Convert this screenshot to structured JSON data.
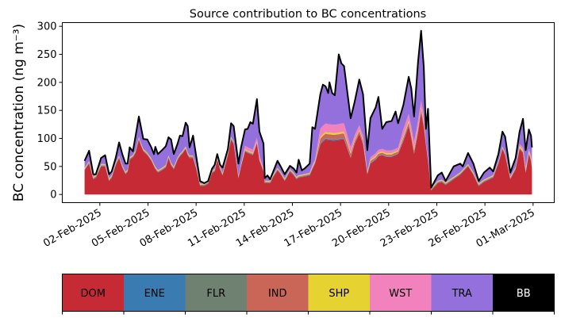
{
  "chart_data": {
    "type": "area",
    "stacked": true,
    "title": "Source contribution to BC concentrations",
    "xlabel": "",
    "ylabel": "BC concentration (ng m⁻³)",
    "x_unit": "day of February 2025",
    "xlim": [
      -0.34,
      30.32
    ],
    "ylim": [
      -14.6,
      306.6
    ],
    "yticks": [
      0,
      50,
      100,
      150,
      200,
      250,
      300
    ],
    "xticks": [
      2,
      5,
      8,
      11,
      14,
      17,
      20,
      23,
      26,
      29
    ],
    "xtick_labels": [
      "02-Feb-2025",
      "05-Feb-2025",
      "08-Feb-2025",
      "11-Feb-2025",
      "14-Feb-2025",
      "17-Feb-2025",
      "20-Feb-2025",
      "23-Feb-2025",
      "26-Feb-2025",
      "01-Mar-2025"
    ],
    "grid": false,
    "legend_placement": "bottom colorbar",
    "x": [
      1.05,
      1.33,
      1.59,
      1.75,
      2.08,
      2.33,
      2.58,
      2.74,
      2.99,
      3.2,
      3.4,
      3.6,
      3.73,
      3.86,
      4.06,
      4.22,
      4.43,
      4.55,
      4.71,
      4.96,
      5.21,
      5.37,
      5.46,
      5.62,
      5.87,
      6.11,
      6.28,
      6.44,
      6.61,
      6.85,
      6.99,
      7.15,
      7.35,
      7.48,
      7.59,
      7.81,
      8.01,
      8.25,
      8.5,
      8.75,
      8.99,
      9.16,
      9.32,
      9.49,
      9.65,
      9.98,
      10.18,
      10.34,
      10.64,
      10.8,
      11.05,
      11.21,
      11.38,
      11.54,
      11.79,
      11.95,
      12.2,
      12.28,
      12.45,
      12.61,
      12.78,
      13.07,
      13.27,
      13.52,
      13.85,
      14.09,
      14.26,
      14.39,
      14.59,
      14.75,
      15.08,
      15.24,
      15.41,
      15.74,
      15.9,
      16.07,
      16.23,
      16.31,
      16.48,
      16.64,
      16.89,
      17.05,
      17.22,
      17.63,
      17.88,
      18.17,
      18.4,
      18.67,
      18.86,
      19.19,
      19.36,
      19.6,
      19.85,
      20.18,
      20.43,
      20.59,
      20.92,
      21.25,
      21.41,
      21.58,
      21.83,
      22.02,
      22.19,
      22.32,
      22.45,
      22.65,
      23.06,
      23.31,
      23.55,
      24.05,
      24.46,
      24.62,
      24.95,
      25.28,
      25.61,
      25.94,
      26.3,
      26.51,
      26.84,
      27.09,
      27.26,
      27.58,
      27.91,
      28.16,
      28.37,
      28.54,
      28.74,
      28.87,
      28.93
    ],
    "series": [
      {
        "name": "DOM",
        "color": "#c52a35",
        "values": [
          43,
          55,
          27,
          30,
          50,
          50,
          24,
          30,
          52,
          65,
          48,
          36,
          40,
          62,
          66,
          74,
          98,
          88,
          77,
          70,
          60,
          50,
          45,
          39,
          43,
          48,
          65,
          52,
          45,
          62,
          68,
          73,
          81,
          70,
          65,
          65,
          45,
          15,
          15,
          19,
          38,
          41,
          62,
          45,
          34,
          70,
          98,
          90,
          29,
          50,
          77,
          74,
          72,
          70,
          91,
          60,
          41,
          20,
          20,
          20,
          30,
          43,
          36,
          24,
          41,
          34,
          27,
          30,
          31,
          32,
          34,
          45,
          55,
          89,
          94,
          98,
          97,
          97,
          96,
          96,
          97,
          98,
          98,
          65,
          90,
          108,
          90,
          36,
          55,
          62,
          68,
          70,
          67,
          67,
          70,
          72,
          95,
          122,
          100,
          72,
          110,
          146,
          120,
          89,
          60,
          7,
          20,
          22,
          17,
          27,
          35,
          40,
          50,
          35,
          15,
          22,
          27,
          30,
          55,
          81,
          70,
          27,
          45,
          81,
          74,
          39,
          72,
          60,
          46
        ]
      },
      {
        "name": "ENE",
        "color": "#3a7bb2",
        "values": [
          1,
          1,
          1,
          1,
          1,
          1,
          1,
          1,
          1,
          1,
          1,
          1,
          1,
          1,
          1,
          1,
          1,
          1,
          1,
          1,
          1,
          1,
          1,
          1,
          1,
          1,
          1,
          1,
          1,
          1,
          1,
          1,
          1,
          1,
          1,
          1,
          1,
          1,
          1,
          1,
          1,
          1,
          1,
          1,
          1,
          1,
          1,
          1,
          1,
          1,
          1,
          1,
          1,
          1,
          1,
          1,
          1,
          1,
          1,
          1,
          1,
          1,
          1,
          1,
          1,
          1,
          1,
          1,
          1,
          1,
          1,
          1,
          1,
          2,
          2,
          2,
          2,
          2,
          2,
          2,
          2,
          2,
          2,
          1,
          1,
          1,
          1,
          1,
          1,
          1,
          1,
          1,
          1,
          1,
          1,
          1,
          2,
          2,
          2,
          2,
          2,
          2,
          2,
          1,
          1,
          1,
          1,
          1,
          1,
          1,
          1,
          1,
          1,
          1,
          1,
          1,
          1,
          1,
          1,
          1,
          1,
          1,
          1,
          1,
          1,
          1,
          1,
          1,
          1
        ]
      },
      {
        "name": "FLR",
        "color": "#6f8272",
        "values": [
          0.5,
          0.5,
          0.5,
          0.5,
          0.5,
          0.5,
          0.5,
          0.5,
          0.5,
          0.5,
          0.5,
          0.5,
          0.5,
          0.5,
          0.5,
          0.5,
          0.5,
          0.5,
          0.5,
          0.5,
          0.5,
          0.5,
          0.5,
          0.5,
          0.5,
          0.5,
          0.5,
          0.5,
          0.5,
          0.5,
          0.5,
          0.5,
          0.5,
          0.5,
          0.5,
          0.5,
          0.5,
          0.5,
          0.5,
          0.5,
          0.5,
          0.5,
          0.5,
          0.5,
          0.5,
          0.5,
          0.5,
          0.5,
          0.5,
          0.5,
          0.5,
          0.5,
          0.5,
          0.5,
          0.5,
          0.5,
          0.5,
          0.5,
          0.5,
          0.5,
          0.5,
          0.5,
          0.5,
          0.5,
          0.5,
          0.5,
          0.5,
          0.5,
          0.5,
          0.5,
          0.5,
          0.5,
          0.5,
          0.5,
          0.5,
          0.5,
          0.5,
          0.5,
          0.5,
          0.5,
          0.5,
          0.5,
          0.5,
          0.5,
          0.5,
          0.5,
          0.5,
          0.5,
          0.5,
          0.5,
          0.5,
          0.5,
          0.5,
          0.5,
          0.5,
          0.5,
          0.5,
          0.5,
          0.5,
          0.5,
          0.5,
          0.5,
          0.5,
          0.5,
          0.5,
          0.5,
          0.5,
          0.5,
          0.5,
          0.5,
          0.5,
          0.5,
          0.5,
          0.5,
          0.5,
          0.5,
          0.5,
          0.5,
          0.5,
          0.5,
          0.5,
          0.5,
          0.5,
          0.5,
          0.5,
          0.5,
          0.5,
          0.5,
          0.5
        ]
      },
      {
        "name": "IND",
        "color": "#c96657",
        "values": [
          1,
          1,
          1,
          1,
          1,
          1,
          1,
          1,
          1,
          1,
          1,
          1,
          1,
          1,
          1,
          1,
          1,
          1,
          1,
          1,
          1,
          1,
          1,
          1,
          1,
          1,
          1,
          1,
          1,
          1,
          1,
          1,
          1,
          1,
          1,
          1,
          1,
          1,
          1,
          1,
          1,
          1,
          1,
          1,
          1,
          1,
          1,
          1,
          1,
          1,
          1,
          1,
          1,
          1,
          1,
          1,
          1,
          1,
          1,
          1,
          1,
          1,
          1,
          1,
          1,
          1,
          1,
          1,
          1,
          1,
          1,
          1,
          1,
          8,
          8,
          8,
          8,
          8,
          8,
          8,
          8,
          8,
          8,
          6,
          4,
          4,
          4,
          1,
          3,
          3,
          3,
          3,
          3,
          3,
          3,
          3,
          4,
          4,
          4,
          4,
          4,
          4,
          4,
          1,
          1,
          1,
          1,
          1,
          1,
          1,
          1,
          1,
          1,
          1,
          1,
          1,
          1,
          1,
          1,
          1,
          1,
          1,
          1,
          1,
          1,
          1,
          1,
          1,
          1
        ]
      },
      {
        "name": "SHP",
        "color": "#e6d230",
        "values": [
          1.5,
          1.5,
          1.5,
          1.5,
          1.5,
          1.5,
          1.5,
          1.5,
          1.5,
          1.5,
          1.5,
          1.5,
          1.5,
          1.5,
          1.5,
          1.5,
          1.5,
          1.5,
          1.5,
          1.5,
          1.5,
          1.5,
          1.5,
          1.5,
          1.5,
          1.5,
          1.5,
          1.5,
          1.5,
          1.5,
          1.5,
          1.5,
          1.5,
          1.5,
          1.5,
          1.5,
          1.5,
          1.5,
          1.5,
          1.5,
          1.5,
          1.5,
          1.5,
          1.5,
          1.5,
          1.5,
          1.5,
          1.5,
          1.5,
          1.5,
          1.5,
          1.5,
          1.5,
          1.5,
          1.5,
          1.5,
          1.5,
          1.5,
          1.5,
          1.5,
          1.5,
          1.5,
          1.5,
          1.5,
          1.5,
          1.5,
          1.5,
          1.5,
          1.5,
          1.5,
          1.5,
          2,
          2,
          3,
          3,
          3,
          3,
          3,
          3,
          3,
          3,
          3,
          3,
          2,
          2,
          2,
          2,
          1.5,
          2,
          2,
          2,
          2,
          2,
          2,
          2,
          2,
          3,
          3,
          3,
          3,
          3,
          3,
          3,
          1.5,
          1.5,
          1.5,
          1.5,
          1.5,
          1.5,
          1.5,
          1.5,
          1.5,
          1.5,
          1.5,
          1.5,
          1.5,
          1.5,
          1.5,
          1.5,
          1.5,
          1.5,
          1.5,
          1.5,
          3,
          3,
          3,
          3,
          3,
          3
        ]
      },
      {
        "name": "WST",
        "color": "#f282bd",
        "values": [
          0.5,
          0.5,
          0.5,
          0.5,
          0.5,
          0.5,
          0.5,
          0.5,
          0.5,
          0.5,
          0.5,
          0.5,
          0.5,
          0.5,
          0.5,
          0.5,
          0.5,
          0.5,
          0.5,
          0.5,
          0.5,
          0.5,
          0.5,
          0.5,
          0.5,
          0.5,
          0.5,
          0.5,
          0.5,
          0.5,
          0.5,
          0.5,
          0.5,
          0.5,
          0.5,
          0.5,
          0.5,
          0.5,
          0.5,
          0.5,
          0.5,
          0.5,
          0.5,
          0.5,
          0.5,
          0.5,
          0.5,
          0.5,
          0.5,
          0.5,
          6,
          6,
          6,
          6,
          6,
          6,
          0.5,
          0.5,
          0.5,
          0.5,
          0.5,
          0.5,
          0.5,
          0.5,
          0.5,
          0.5,
          0.5,
          0.5,
          0.5,
          0.5,
          0.5,
          3,
          3,
          15,
          15,
          15,
          15,
          15,
          15,
          15,
          15,
          15,
          15,
          10,
          8,
          8,
          8,
          0.5,
          5,
          5,
          5,
          5,
          5,
          5,
          5,
          5,
          12,
          12,
          12,
          12,
          12,
          12,
          12,
          0.5,
          0.5,
          0.5,
          0.5,
          0.5,
          0.5,
          0.5,
          0.5,
          0.5,
          0.5,
          0.5,
          0.5,
          0.5,
          0.5,
          0.5,
          0.5,
          0.5,
          0.5,
          0.5,
          0.5,
          4,
          4,
          4,
          4,
          4,
          4
        ]
      },
      {
        "name": "TRA",
        "color": "#9370db",
        "values": [
          12,
          18,
          4,
          1,
          10,
          15,
          7,
          6,
          8,
          23,
          19,
          14,
          10,
          17,
          6,
          24,
          36,
          29,
          17,
          23,
          19,
          17,
          35,
          28,
          31,
          33,
          32,
          41,
          22,
          24,
          32,
          26,
          42,
          47,
          14,
          35,
          17,
          4,
          0,
          0,
          3,
          7,
          5,
          3,
          9,
          6,
          24,
          27,
          21,
          29,
          28.5,
          32.5,
          46.5,
          45.5,
          68.5,
          41.5,
          45,
          4,
          9,
          2,
          4,
          12,
          9,
          7,
          5,
          7,
          7,
          27,
          7,
          9,
          16,
          67,
          54,
          61,
          73,
          66,
          55,
          74,
          56,
          52,
          124,
          107,
          102,
          51,
          59,
          81,
          73,
          38,
          69,
          81,
          94,
          35,
          50,
          52,
          66,
          43,
          43,
          66,
          67,
          45,
          104,
          124,
          85,
          23,
          88,
          0,
          9,
          12,
          2,
          18,
          15,
          5,
          19,
          15,
          4,
          12,
          16,
          6,
          12,
          26,
          28,
          7,
          15,
          21,
          51,
          30,
          34,
          35,
          28
        ]
      },
      {
        "name": "BB",
        "color": "#000000",
        "values": [
          0.5,
          0.5,
          0.5,
          0.5,
          0.5,
          0.5,
          0.5,
          0.5,
          0.5,
          0.5,
          0.5,
          0.5,
          0.5,
          0.5,
          0.5,
          0.5,
          0.5,
          0.5,
          0.5,
          0.5,
          0.5,
          0.5,
          0.5,
          0.5,
          0.5,
          0.5,
          0.5,
          0.5,
          0.5,
          0.5,
          0.5,
          0.5,
          0.5,
          0.5,
          0.5,
          0.5,
          0.5,
          0.5,
          0.5,
          0.5,
          0.5,
          0.5,
          0.5,
          0.5,
          0.5,
          0.5,
          0.5,
          0.5,
          0.5,
          0.5,
          0.5,
          0.5,
          0.5,
          0.5,
          0.5,
          0.5,
          0.5,
          0.5,
          0.5,
          0.5,
          0.5,
          0.5,
          0.5,
          0.5,
          0.5,
          0.5,
          0.5,
          0.5,
          0.5,
          0.5,
          0.5,
          0.5,
          0.5,
          0.5,
          0.5,
          0.5,
          0.5,
          0.5,
          0.5,
          0.5,
          0.5,
          0.5,
          0.5,
          0.5,
          0.5,
          0.5,
          0.5,
          0.5,
          0.5,
          0.5,
          0.5,
          0.5,
          0.5,
          0.5,
          0.5,
          0.5,
          0.5,
          0.5,
          0.5,
          0.5,
          0.5,
          0.5,
          0.5,
          0.5,
          0.5,
          0.5,
          0.5,
          0.5,
          0.5,
          0.5,
          0.5,
          0.5,
          0.5,
          0.5,
          0.5,
          0.5,
          0.5,
          0.5,
          0.5,
          0.5,
          0.5,
          0.5,
          0.5,
          0.5,
          0.5,
          0.5,
          0.5,
          0.5,
          0.5
        ]
      }
    ]
  }
}
